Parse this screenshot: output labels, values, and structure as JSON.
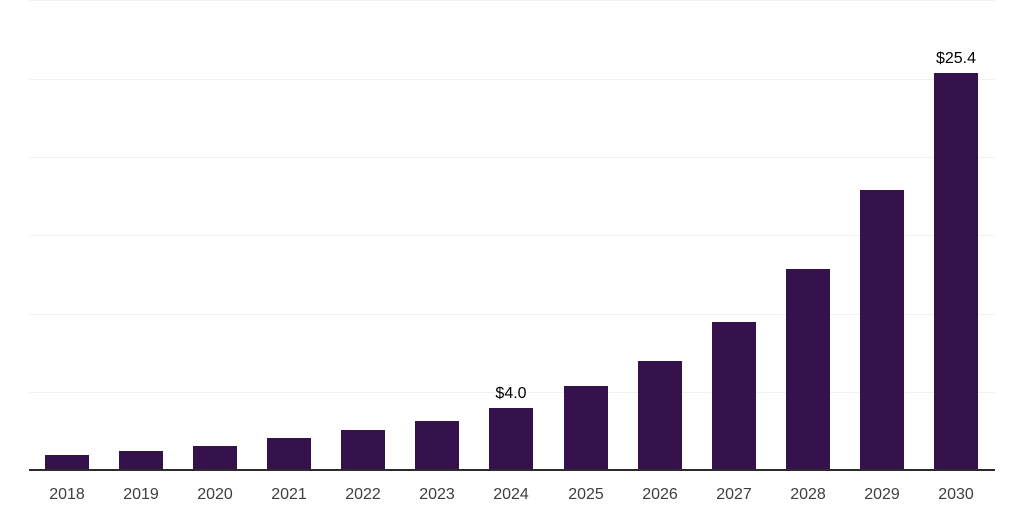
{
  "chart_data": {
    "type": "bar",
    "title": "",
    "xlabel": "",
    "ylabel": "",
    "categories": [
      "2018",
      "2019",
      "2020",
      "2021",
      "2022",
      "2023",
      "2024",
      "2025",
      "2026",
      "2027",
      "2028",
      "2029",
      "2030"
    ],
    "values": [
      1.0,
      1.3,
      1.6,
      2.1,
      2.6,
      3.2,
      4.0,
      5.4,
      7.0,
      9.5,
      12.9,
      17.9,
      25.4
    ],
    "point_labels": [
      "",
      "",
      "",
      "",
      "",
      "",
      "$4.0",
      "",
      "",
      "",
      "",
      "",
      "$25.4"
    ],
    "ylim": [
      0,
      30
    ],
    "grid_step": 5,
    "gridlines_visible": true,
    "y_tick_labels_visible": false,
    "legend_position": "none",
    "colors": {
      "bar": "#35124b",
      "axis_line": "#2b2b2b",
      "gridline": "#f1f1f1",
      "category_label": "#3e3e3e",
      "value_label": "#000000",
      "background": "#ffffff"
    }
  }
}
